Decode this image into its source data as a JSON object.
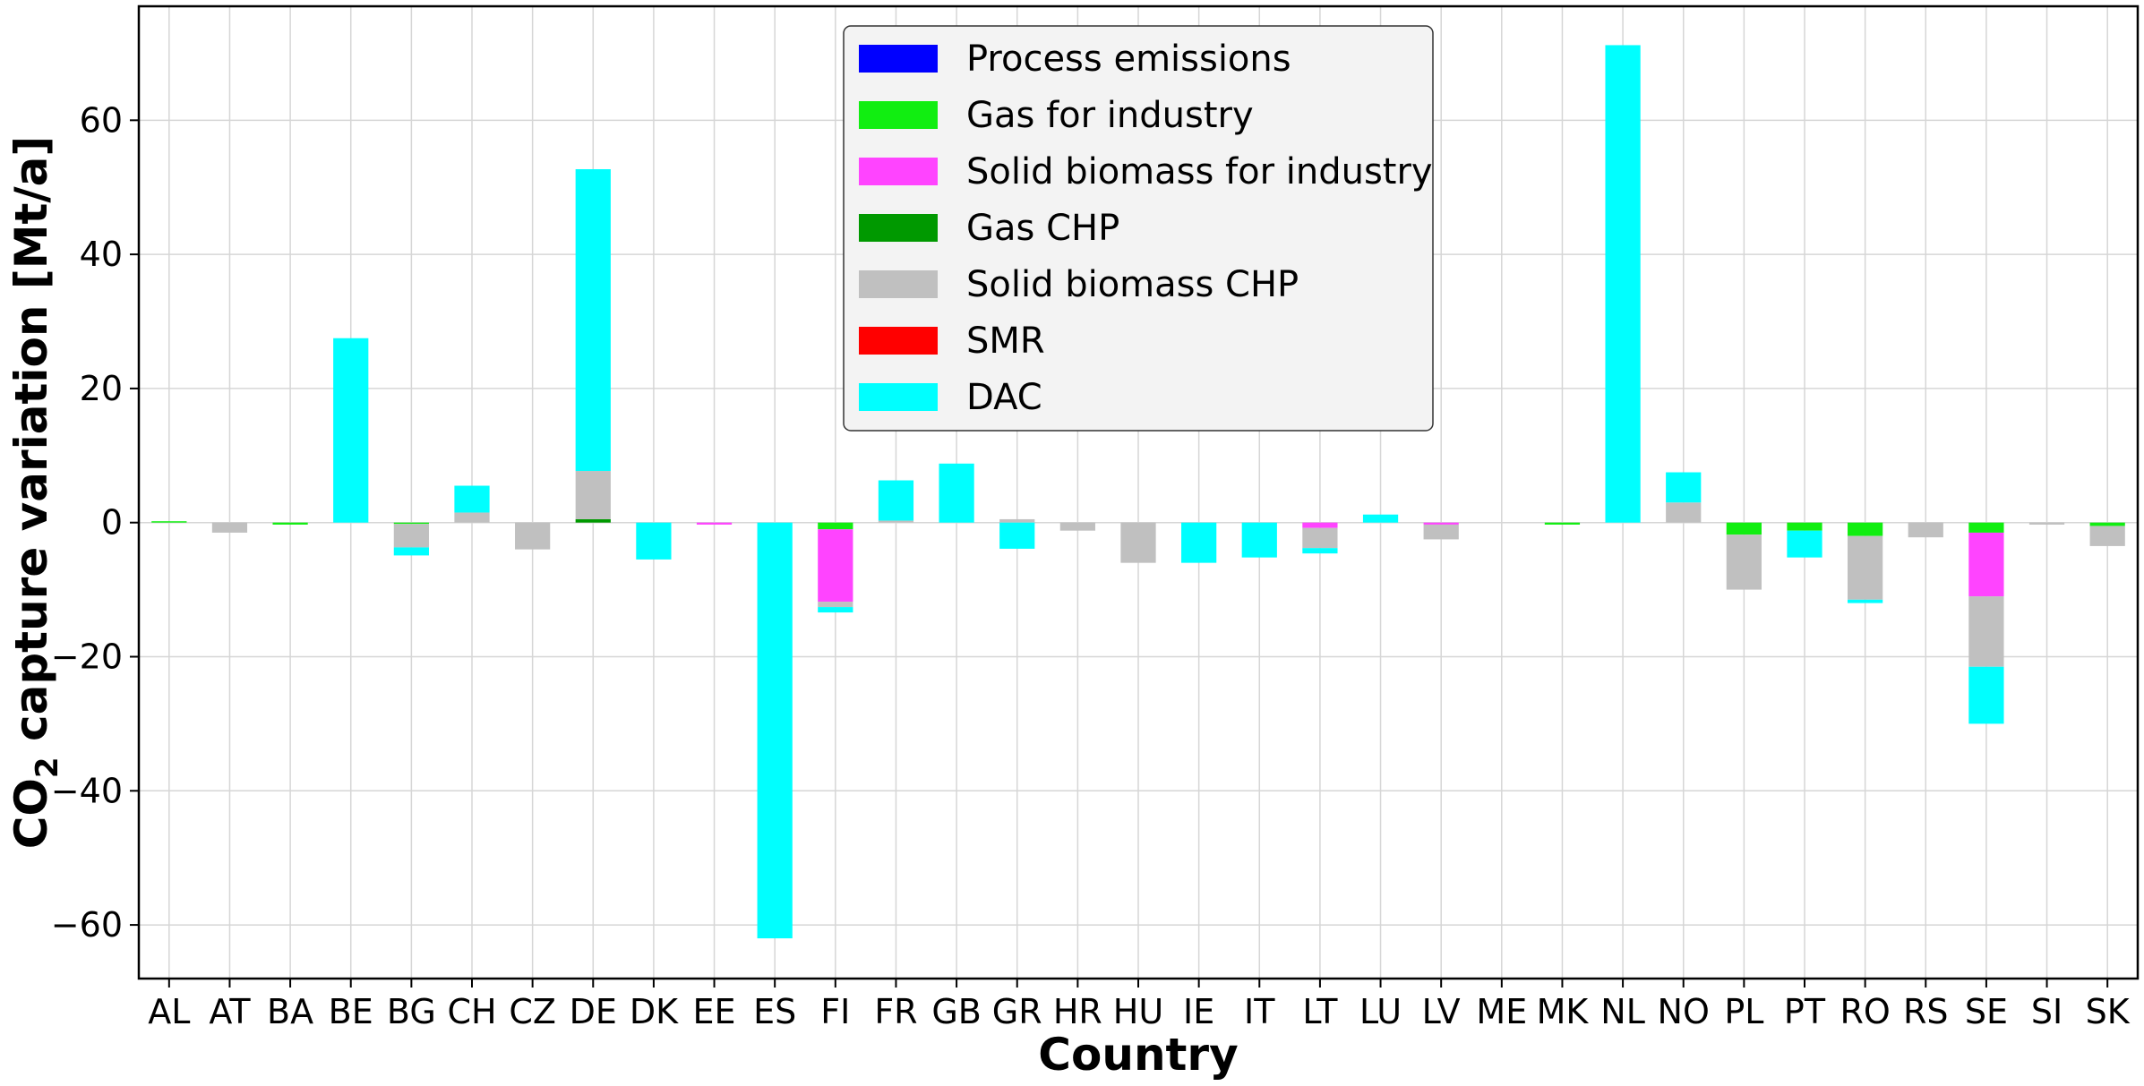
{
  "chart_data": {
    "type": "bar",
    "stacked": true,
    "title": "",
    "xlabel": "Country",
    "ylabel_main": "CO",
    "ylabel_sub": "2",
    "ylabel_rest": " capture variation [Mt/a]",
    "ylim": [
      -68,
      77
    ],
    "yticks": [
      -60,
      -40,
      -20,
      0,
      20,
      40,
      60
    ],
    "ytick_labels": [
      "−60",
      "−40",
      "−20",
      "0",
      "20",
      "40",
      "60"
    ],
    "grid": true,
    "legend_position": "top-center",
    "categories": [
      "AL",
      "AT",
      "BA",
      "BE",
      "BG",
      "CH",
      "CZ",
      "DE",
      "DK",
      "EE",
      "ES",
      "FI",
      "FR",
      "GB",
      "GR",
      "HR",
      "HU",
      "IE",
      "IT",
      "LT",
      "LU",
      "LV",
      "ME",
      "MK",
      "NL",
      "NO",
      "PL",
      "PT",
      "RO",
      "RS",
      "SE",
      "SI",
      "SK"
    ],
    "series": [
      {
        "name": "Process emissions",
        "color": "#0000ff",
        "values": [
          0,
          0,
          0,
          0,
          0,
          0,
          0,
          0,
          0,
          0,
          0,
          0,
          0,
          0,
          0,
          0,
          0,
          0,
          0,
          0,
          0,
          0,
          0,
          0,
          0,
          0,
          0,
          0,
          0,
          0,
          0,
          0,
          0
        ]
      },
      {
        "name": "Gas for industry",
        "color": "#11ee11",
        "values": [
          0.2,
          0,
          -0.3,
          0,
          -0.2,
          0,
          0,
          0,
          0,
          0,
          0,
          -1.0,
          0,
          0,
          0,
          0,
          0,
          0,
          0,
          0,
          0,
          0,
          0,
          -0.3,
          0,
          0,
          -1.8,
          -1.2,
          -2.0,
          0,
          -1.5,
          0,
          -0.5
        ]
      },
      {
        "name": "Solid biomass for industry",
        "color": "#ff44ff",
        "values": [
          0,
          0,
          0,
          0,
          0,
          0,
          0,
          0,
          0,
          -0.3,
          0,
          -10.8,
          0,
          0,
          0,
          0,
          0,
          0,
          0,
          -0.8,
          0,
          -0.3,
          0,
          0,
          0,
          0,
          0,
          0,
          0,
          0,
          -9.5,
          0,
          0
        ]
      },
      {
        "name": "Gas CHP",
        "color": "#009900",
        "values": [
          0,
          0,
          0,
          0,
          0,
          0,
          0,
          0.5,
          0,
          0,
          0,
          0,
          0,
          0,
          0,
          0,
          0,
          0,
          0,
          0,
          0,
          0,
          0,
          0,
          0,
          0,
          0,
          0,
          0,
          0,
          0,
          0,
          0
        ]
      },
      {
        "name": "Solid biomass CHP",
        "color": "#c0c0c0",
        "values": [
          0,
          -1.5,
          0,
          0,
          -3.5,
          1.5,
          -4.0,
          7.2,
          0,
          0,
          0,
          -0.8,
          0.3,
          0,
          0.5,
          -1.2,
          -6.0,
          0,
          0,
          -3.0,
          0,
          -2.2,
          0,
          0,
          0,
          3.0,
          -8.2,
          0,
          -9.5,
          -2.2,
          -10.5,
          -0.3,
          -3.0
        ]
      },
      {
        "name": "SMR",
        "color": "#ff0000",
        "values": [
          0,
          0,
          0,
          0,
          0,
          0,
          0,
          0,
          0,
          0,
          0,
          0,
          0,
          0,
          0,
          0,
          0,
          0,
          0,
          0,
          0,
          0,
          0,
          0,
          0,
          0,
          0,
          0,
          0,
          0,
          0,
          0,
          0
        ]
      },
      {
        "name": "DAC",
        "color": "#00ffff",
        "values": [
          0,
          0,
          0,
          27.5,
          -1.2,
          4.0,
          0,
          45.0,
          -5.5,
          0,
          -62.0,
          -0.8,
          6.0,
          8.8,
          -3.9,
          0,
          0,
          -6.0,
          -5.2,
          -0.8,
          1.2,
          0,
          0,
          0,
          71.2,
          4.5,
          0,
          -4.0,
          -0.5,
          0,
          -8.5,
          0,
          0
        ]
      }
    ]
  }
}
